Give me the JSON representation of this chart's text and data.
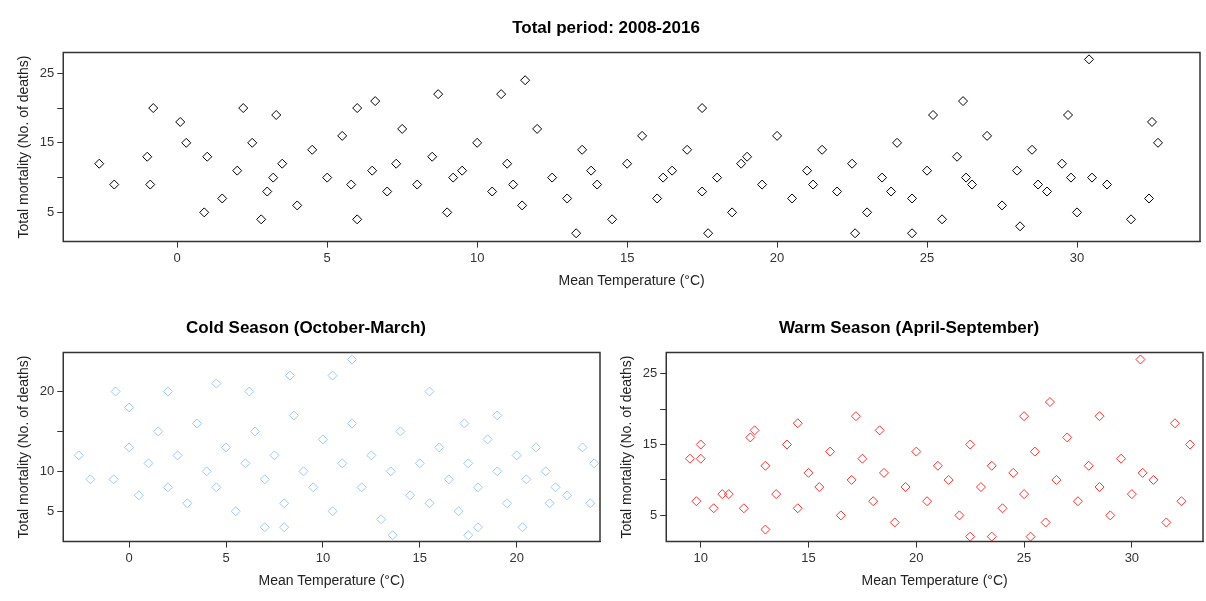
{
  "chart_data": [
    {
      "type": "scatter",
      "title": "Total period: 2008-2016",
      "xlabel": "Mean Temperature (°C)",
      "ylabel": "Total mortality (No. of deaths)",
      "xlim": [
        -3.8,
        34.1
      ],
      "ylim": [
        0.8,
        28
      ],
      "xticks": [
        0,
        5,
        10,
        15,
        20,
        25,
        30
      ],
      "yticks": [
        5,
        {
          "value": 10,
          "label": null
        },
        15,
        {
          "value": 20,
          "label": null
        },
        25
      ],
      "marker": "diamond",
      "series": [
        {
          "color": "#000000",
          "x": [
            -2.6,
            -2.1,
            -1,
            -0.8,
            -0.9,
            0.1,
            0.3,
            0.9,
            2.2,
            2.8,
            3.3,
            6,
            6.6,
            8.7,
            10.8,
            11.6,
            13.3,
            17.5,
            17.7,
            22.6,
            24.5,
            25.2,
            26.2,
            30.4,
            32.5,
            32.7,
            32.4,
            31.8,
            29.7,
            28.1,
            1,
            1.5,
            2,
            2.5,
            3,
            3.5,
            4,
            4.5,
            5,
            5.5,
            6,
            6.5,
            7,
            7.5,
            8,
            8.5,
            9,
            9.5,
            10,
            10.5,
            11,
            11.5,
            12,
            12.5,
            13,
            13.5,
            14,
            14.5,
            15,
            15.5,
            16,
            16.5,
            17,
            17.5,
            18,
            18.5,
            19,
            19.5,
            20,
            20.5,
            21,
            21.5,
            22,
            22.5,
            23,
            23.5,
            24,
            24.5,
            25,
            25.5,
            26,
            26.5,
            27,
            27.5,
            28,
            28.5,
            29,
            29.5,
            30,
            30.5,
            31,
            3.2,
            5.8,
            7.3,
            9.2,
            11.2,
            13.8,
            16.2,
            18.8,
            21.2,
            23.8,
            26.3,
            28.7,
            29.8
          ],
          "values": [
            12,
            9,
            13,
            20,
            9,
            18,
            15,
            5,
            20,
            4,
            19,
            20,
            21,
            22,
            22,
            24,
            2,
            20,
            2,
            2,
            2,
            19,
            21,
            27,
            18,
            15,
            7,
            4,
            19,
            3,
            13,
            7,
            11,
            15,
            8,
            12,
            6,
            14,
            10,
            16,
            4,
            11,
            8,
            17,
            9,
            13,
            5,
            11,
            15,
            8,
            12,
            6,
            17,
            10,
            7,
            14,
            9,
            4,
            12,
            16,
            7,
            11,
            14,
            8,
            10,
            5,
            13,
            9,
            16,
            7,
            11,
            14,
            8,
            12,
            5,
            10,
            15,
            7,
            11,
            4,
            13,
            9,
            16,
            6,
            11,
            14,
            8,
            12,
            5,
            10,
            9,
            10,
            9,
            12,
            10,
            9,
            11,
            10,
            12,
            9,
            8,
            10,
            9,
            10
          ]
        }
      ]
    },
    {
      "type": "scatter",
      "title": "Cold Season (October-March)",
      "xlabel": "Mean Temperature (°C)",
      "ylabel": "Total mortality (No. of deaths)",
      "xlim": [
        -3.4,
        24.3
      ],
      "ylim": [
        1.2,
        24.9
      ],
      "xticks": [
        0,
        5,
        10,
        15,
        20
      ],
      "yticks": [
        5,
        10,
        {
          "value": 15,
          "label": null
        },
        20
      ],
      "marker": "diamond",
      "series": [
        {
          "color": "#99ccff",
          "x": [
            -2.6,
            -2,
            -0.7,
            -0.8,
            0,
            2,
            4.5,
            6.2,
            8.3,
            10.5,
            11.5,
            7,
            8,
            13.6,
            17.5,
            18,
            20.3,
            21.7,
            22.6,
            23.4,
            23.8,
            24,
            15.5,
            17.3,
            19,
            0,
            0.5,
            1,
            1.5,
            2,
            2.5,
            3,
            3.5,
            4,
            4.5,
            5,
            5.5,
            6,
            6.5,
            7,
            7.5,
            8,
            8.5,
            9,
            9.5,
            10,
            10.5,
            11,
            11.5,
            12,
            12.5,
            13,
            13.5,
            14,
            14.5,
            15,
            15.5,
            16,
            16.5,
            17,
            17.5,
            18,
            18.5,
            19,
            19.5,
            20,
            20.5,
            21,
            21.5,
            22
          ],
          "values": [
            12,
            9,
            20,
            9,
            18,
            20,
            21,
            20,
            22,
            22,
            24,
            3,
            3,
            2,
            2,
            3,
            3,
            6,
            7,
            13,
            6,
            11,
            20,
            16,
            17,
            13,
            7,
            11,
            15,
            8,
            12,
            6,
            16,
            10,
            8,
            13,
            5,
            11,
            15,
            9,
            12,
            6,
            17,
            10,
            8,
            14,
            5,
            11,
            16,
            8,
            12,
            4,
            10,
            15,
            7,
            11,
            6,
            13,
            9,
            5,
            11,
            8,
            14,
            10,
            6,
            12,
            9,
            13,
            10,
            8
          ]
        }
      ]
    },
    {
      "type": "scatter",
      "title": "Warm Season (April-September)",
      "xlabel": "Mean Temperature (°C)",
      "ylabel": "Total mortality (No. of deaths)",
      "xlim": [
        8.4,
        33.3
      ],
      "ylim": [
        1.3,
        28
      ],
      "xticks": [
        10,
        15,
        20,
        25,
        30
      ],
      "yticks": [
        5,
        {
          "value": 10,
          "label": null
        },
        15,
        {
          "value": 20,
          "label": null
        },
        25
      ],
      "marker": "diamond",
      "series": [
        {
          "color": "#ff3333",
          "x": [
            9.5,
            9.8,
            10,
            10,
            10.6,
            11,
            11.3,
            12,
            12.3,
            12.5,
            13,
            14.5,
            17.2,
            18.3,
            25,
            26.2,
            30.4,
            32,
            32.7,
            32.3,
            31.6,
            22.5,
            23.5,
            25.3,
            28.5,
            13,
            13.5,
            14,
            14.5,
            15,
            15.5,
            16,
            16.5,
            17,
            17.5,
            18,
            18.5,
            19,
            19.5,
            20,
            20.5,
            21,
            21.5,
            22,
            22.5,
            23,
            23.5,
            24,
            24.5,
            25,
            25.5,
            26,
            26.5,
            27,
            27.5,
            28,
            28.5,
            29,
            29.5,
            30,
            30.5,
            31
          ],
          "values": [
            13,
            7,
            15,
            13,
            6,
            8,
            8,
            6,
            16,
            17,
            3,
            18,
            19,
            17,
            19,
            21,
            27,
            18,
            15,
            7,
            4,
            2,
            2,
            2,
            19,
            12,
            8,
            15,
            6,
            11,
            9,
            14,
            5,
            10,
            13,
            7,
            11,
            4,
            9,
            14,
            7,
            12,
            10,
            5,
            15,
            9,
            12,
            6,
            11,
            8,
            14,
            4,
            10,
            16,
            7,
            12,
            9,
            5,
            13,
            8,
            11,
            10
          ]
        }
      ]
    }
  ]
}
